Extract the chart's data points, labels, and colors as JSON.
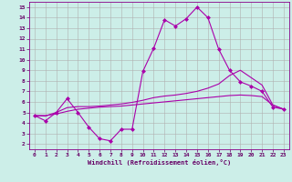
{
  "xlabel": "Windchill (Refroidissement éolien,°C)",
  "bg_color": "#cceee8",
  "grid_color": "#b0b0b0",
  "line_color": "#aa00aa",
  "xlim": [
    -0.5,
    23.5
  ],
  "ylim": [
    1.5,
    15.5
  ],
  "xticks": [
    0,
    1,
    2,
    3,
    4,
    5,
    6,
    7,
    8,
    9,
    10,
    11,
    12,
    13,
    14,
    15,
    16,
    17,
    18,
    19,
    20,
    21,
    22,
    23
  ],
  "yticks": [
    2,
    3,
    4,
    5,
    6,
    7,
    8,
    9,
    10,
    11,
    12,
    13,
    14,
    15
  ],
  "series1_x": [
    0,
    1,
    2,
    3,
    4,
    5,
    6,
    7,
    8,
    9,
    10,
    11,
    12,
    13,
    14,
    15,
    16,
    17,
    18,
    19,
    20,
    21,
    22,
    23
  ],
  "series1_y": [
    4.7,
    4.2,
    5.0,
    6.3,
    5.0,
    3.6,
    2.5,
    2.3,
    3.4,
    3.4,
    8.9,
    11.1,
    13.8,
    13.2,
    13.9,
    15.0,
    14.0,
    11.0,
    9.0,
    7.9,
    7.5,
    7.0,
    5.5,
    5.3
  ],
  "series2_x": [
    0,
    1,
    2,
    3,
    4,
    5,
    6,
    7,
    8,
    9,
    10,
    11,
    12,
    13,
    14,
    15,
    16,
    17,
    18,
    19,
    20,
    21,
    22,
    23
  ],
  "series2_y": [
    4.7,
    4.65,
    5.0,
    5.45,
    5.55,
    5.55,
    5.6,
    5.7,
    5.8,
    5.95,
    6.15,
    6.4,
    6.55,
    6.65,
    6.8,
    7.0,
    7.3,
    7.7,
    8.5,
    9.0,
    8.3,
    7.6,
    5.7,
    5.3
  ],
  "series3_x": [
    0,
    1,
    2,
    3,
    4,
    5,
    6,
    7,
    8,
    9,
    10,
    11,
    12,
    13,
    14,
    15,
    16,
    17,
    18,
    19,
    20,
    21,
    22,
    23
  ],
  "series3_y": [
    4.7,
    4.7,
    4.85,
    5.1,
    5.3,
    5.4,
    5.5,
    5.55,
    5.6,
    5.7,
    5.8,
    5.9,
    6.0,
    6.1,
    6.2,
    6.3,
    6.4,
    6.5,
    6.6,
    6.65,
    6.6,
    6.5,
    5.7,
    5.3
  ],
  "marker_size": 2.5,
  "line_width": 0.8,
  "tick_fontsize": 4.5,
  "xlabel_fontsize": 5.0
}
